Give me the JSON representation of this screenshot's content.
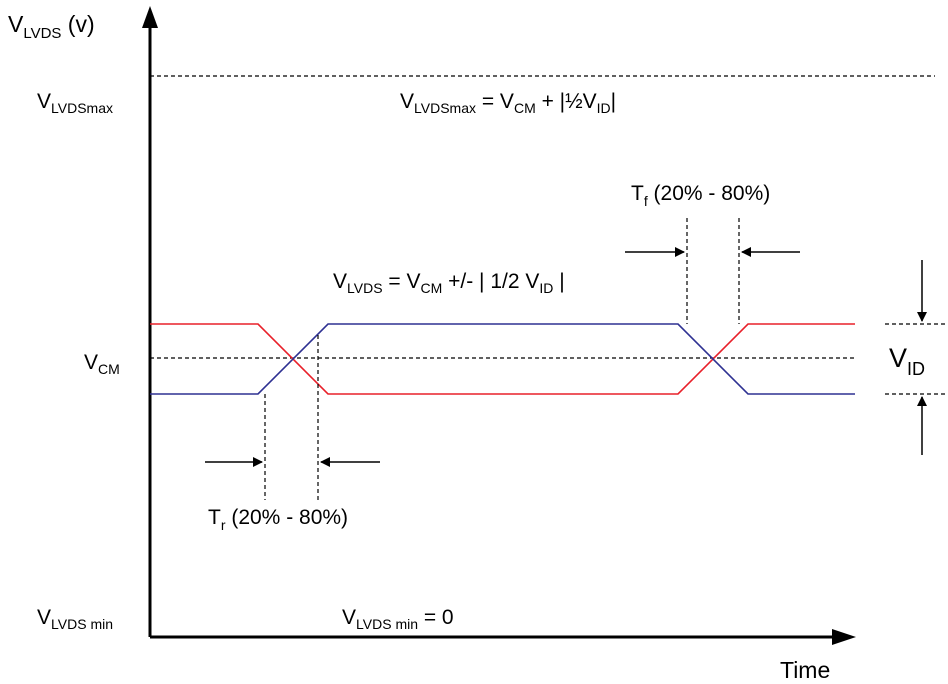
{
  "axes": {
    "y_label": {
      "main": "V",
      "sub": "LVDS",
      "suffix": "  (v)"
    },
    "x_label": "Time"
  },
  "levels": {
    "max": {
      "main": "V",
      "sub": "LVDSmax"
    },
    "cm": {
      "main": "V",
      "sub": "CM"
    },
    "min": {
      "main": "V",
      "sub": "LVDS min"
    }
  },
  "equations": {
    "max": {
      "v1": "V",
      "s1": "LVDSmax",
      "t1": " = V",
      "s2": "CM",
      "t2": " + |½V",
      "s3": "ID",
      "t3": "|"
    },
    "signal": {
      "v1": "V",
      "s1": "LVDS",
      "t1": "  =  V",
      "s2": "CM",
      "t2": "  +/-   | 1/2 V",
      "s3": "ID",
      "t3": " |"
    },
    "min": {
      "v1": "V",
      "s1": "LVDS min",
      "t1": "  =  0"
    }
  },
  "timing": {
    "fall": {
      "main": "T",
      "sub": "f",
      "rest": "  (20% - 80%)"
    },
    "rise": {
      "main": "T",
      "sub": "r",
      "rest": "  (20% - 80%)"
    }
  },
  "swing": {
    "main": "V",
    "sub": "ID"
  },
  "colors": {
    "signal_p": "#e8202a",
    "signal_n": "#2e3192",
    "axis": "#000000"
  }
}
